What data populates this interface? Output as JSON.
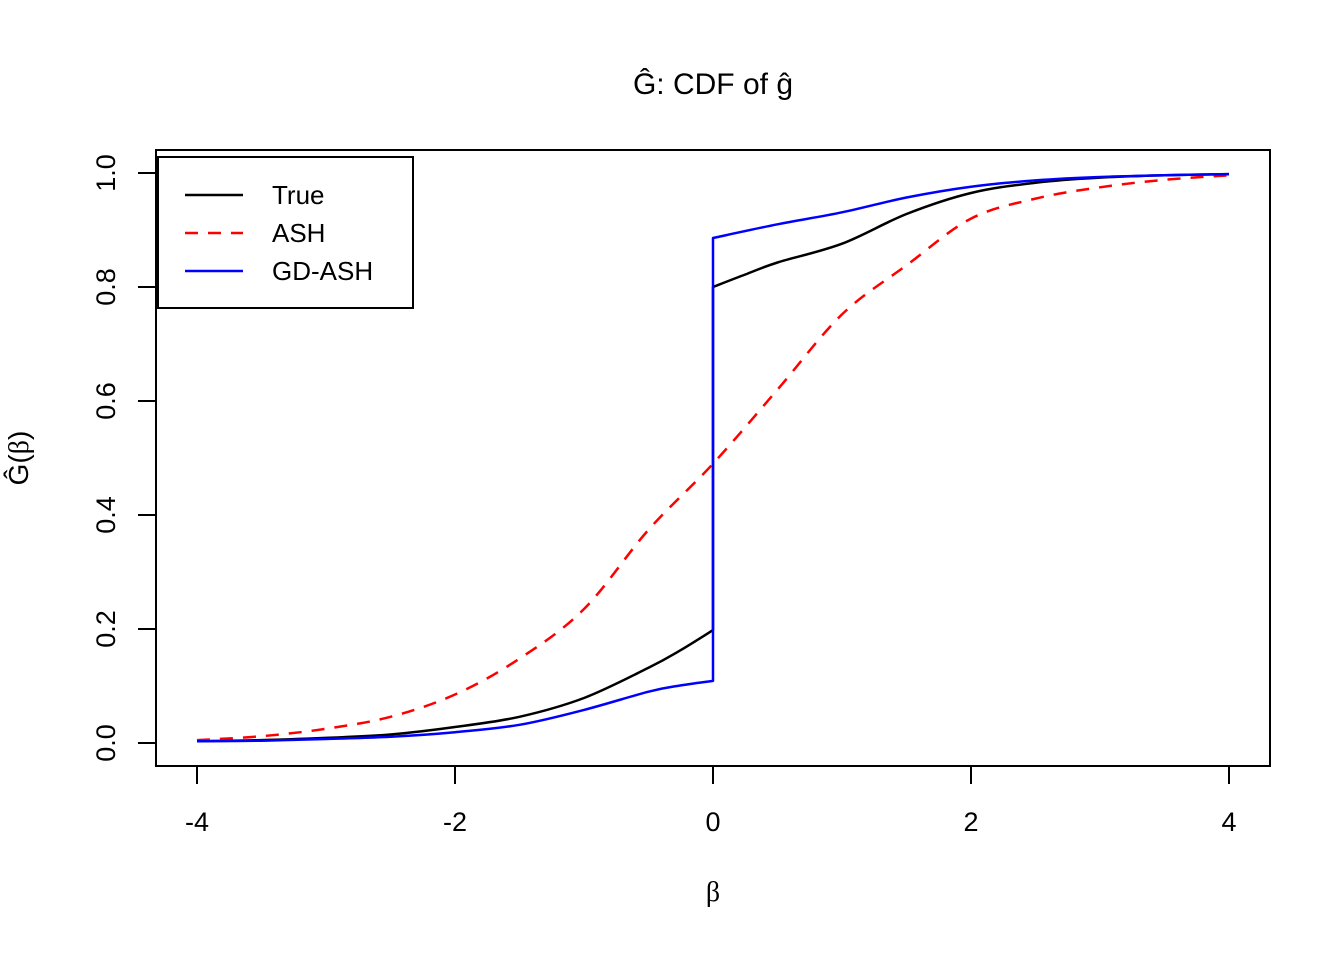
{
  "title": "Ĝ: CDF of ĝ",
  "x_axis": {
    "label": "β",
    "tick_labels": [
      "-4",
      "-2",
      "0",
      "2",
      "4"
    ],
    "tick_values": [
      -4,
      -2,
      0,
      2,
      4
    ]
  },
  "y_axis": {
    "label_prefix": "Ĝ(",
    "label_beta": "β",
    "label_suffix": ")",
    "tick_labels": [
      "0.0",
      "0.2",
      "0.4",
      "0.6",
      "0.8",
      "1.0"
    ],
    "tick_values": [
      0,
      0.2,
      0.4,
      0.6,
      0.8,
      1.0
    ]
  },
  "legend": {
    "items": [
      {
        "label": "True",
        "color": "#000000",
        "dashed": false
      },
      {
        "label": "ASH",
        "color": "#ff0000",
        "dashed": true
      },
      {
        "label": "GD-ASH",
        "color": "#0000ff",
        "dashed": false
      }
    ]
  },
  "colors": {
    "true_line": "#000000",
    "ash_line": "#ff0000",
    "gdash_line": "#0000ff",
    "axis": "#000000",
    "background": "#ffffff"
  },
  "chart_data": {
    "type": "line",
    "title": "Ĝ: CDF of ĝ",
    "xlabel": "β",
    "ylabel": "Ĝ(β)",
    "xlim": [
      -4,
      4
    ],
    "ylim": [
      0,
      1
    ],
    "grid": false,
    "legend_position": "topleft",
    "series": [
      {
        "name": "True",
        "color": "#000000",
        "style": "solid",
        "segments": [
          {
            "x": [
              -4,
              -3.5,
              -3,
              -2.5,
              -2,
              -1.5,
              -1,
              -0.5,
              -0.25,
              0
            ],
            "y": [
              0.003,
              0.005,
              0.009,
              0.015,
              0.028,
              0.046,
              0.079,
              0.132,
              0.163,
              0.198
            ]
          },
          {
            "x": [
              0,
              0.25,
              0.5,
              1,
              1.5,
              2,
              2.5,
              3,
              3.5,
              4
            ],
            "y": [
              0.8,
              0.822,
              0.843,
              0.876,
              0.928,
              0.965,
              0.983,
              0.992,
              0.996,
              0.998
            ]
          }
        ]
      },
      {
        "name": "ASH",
        "color": "#ff0000",
        "style": "dashed",
        "segments": [
          {
            "x": [
              -4,
              -3.5,
              -3,
              -2.5,
              -2,
              -1.5,
              -1,
              -0.5,
              0,
              0.5,
              1,
              1.5,
              2,
              2.5,
              3,
              3.5,
              4
            ],
            "y": [
              0.005,
              0.012,
              0.025,
              0.046,
              0.085,
              0.148,
              0.235,
              0.374,
              0.49,
              0.62,
              0.752,
              0.838,
              0.92,
              0.955,
              0.975,
              0.988,
              0.996
            ]
          }
        ]
      },
      {
        "name": "GD-ASH",
        "color": "#0000ff",
        "style": "solid",
        "segments": [
          {
            "x": [
              -4,
              -3.5,
              -3,
              -2.5,
              -2,
              -1.5,
              -1,
              -0.5,
              -0.25,
              0
            ],
            "y": [
              0.003,
              0.004,
              0.007,
              0.011,
              0.019,
              0.032,
              0.058,
              0.09,
              0.101,
              0.109
            ]
          },
          {
            "x": [
              0,
              0.5,
              1,
              1.5,
              2,
              2.5,
              3,
              3.5,
              4
            ],
            "y": [
              0.886,
              0.91,
              0.931,
              0.957,
              0.976,
              0.987,
              0.993,
              0.996,
              0.998
            ]
          }
        ]
      }
    ]
  }
}
